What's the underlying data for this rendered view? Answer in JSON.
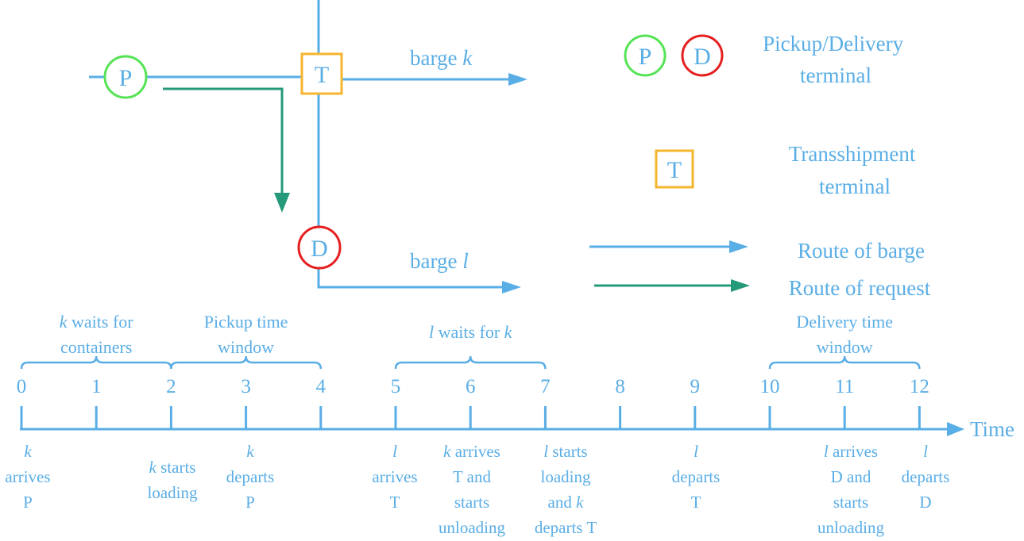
{
  "nodes": {
    "p": "P",
    "d": "D",
    "t": "T"
  },
  "routes": {
    "barge_k": [
      "barge ",
      "k"
    ],
    "barge_l": [
      "barge ",
      "l"
    ]
  },
  "legend": {
    "pd_label": [
      "Pickup/Delivery",
      "terminal"
    ],
    "t_label": [
      "Transshipment",
      "terminal"
    ],
    "route_barge": "Route of barge",
    "route_request": "Route of request"
  },
  "timeline": {
    "axis_label": "Time",
    "ticks": [
      "0",
      "1",
      "2",
      "3",
      "4",
      "5",
      "6",
      "7",
      "8",
      "9",
      "10",
      "11",
      "12"
    ],
    "braces": [
      {
        "lines": [
          [
            {
              "t": "k",
              "i": true
            },
            {
              "t": " waits for"
            }
          ],
          [
            {
              "t": "containers"
            }
          ]
        ]
      },
      {
        "lines": [
          [
            {
              "t": "Pickup time"
            }
          ],
          [
            {
              "t": "window"
            }
          ]
        ]
      },
      {
        "lines": [
          [
            {
              "t": "l",
              "i": true
            },
            {
              "t": " waits for "
            },
            {
              "t": "k",
              "i": true
            }
          ]
        ]
      },
      {
        "lines": [
          [
            {
              "t": "Delivery time"
            }
          ],
          [
            {
              "t": "window"
            }
          ]
        ]
      }
    ],
    "events": [
      {
        "lines": [
          [
            {
              "t": "k",
              "i": true
            }
          ],
          [
            {
              "t": "arrives"
            }
          ],
          [
            {
              "t": "P"
            }
          ]
        ]
      },
      {
        "lines": [
          [
            {
              "t": "k",
              "i": true
            },
            {
              "t": " starts"
            }
          ],
          [
            {
              "t": "loading"
            }
          ]
        ]
      },
      {
        "lines": [
          [
            {
              "t": "k",
              "i": true
            }
          ],
          [
            {
              "t": "departs"
            }
          ],
          [
            {
              "t": "P"
            }
          ]
        ]
      },
      {
        "lines": [
          [
            {
              "t": "l",
              "i": true
            }
          ],
          [
            {
              "t": "arrives"
            }
          ],
          [
            {
              "t": "T"
            }
          ]
        ]
      },
      {
        "lines": [
          [
            {
              "t": "k",
              "i": true
            },
            {
              "t": " arrives"
            }
          ],
          [
            {
              "t": "T and"
            }
          ],
          [
            {
              "t": "starts"
            }
          ],
          [
            {
              "t": "unloading"
            }
          ]
        ]
      },
      {
        "lines": [
          [
            {
              "t": "l",
              "i": true
            },
            {
              "t": " starts"
            }
          ],
          [
            {
              "t": "loading"
            }
          ],
          [
            {
              "t": "and "
            },
            {
              "t": "k",
              "i": true
            }
          ],
          [
            {
              "t": "departs T"
            }
          ]
        ]
      },
      {
        "lines": [
          [
            {
              "t": "l",
              "i": true
            }
          ],
          [
            {
              "t": "departs"
            }
          ],
          [
            {
              "t": "T"
            }
          ]
        ]
      },
      {
        "lines": [
          [
            {
              "t": "l",
              "i": true
            },
            {
              "t": " arrives"
            }
          ],
          [
            {
              "t": "D and"
            }
          ],
          [
            {
              "t": "starts"
            }
          ],
          [
            {
              "t": "unloading"
            }
          ]
        ]
      },
      {
        "lines": [
          [
            {
              "t": "l",
              "i": true
            }
          ],
          [
            {
              "t": "departs"
            }
          ],
          [
            {
              "t": "D"
            }
          ]
        ]
      }
    ]
  }
}
